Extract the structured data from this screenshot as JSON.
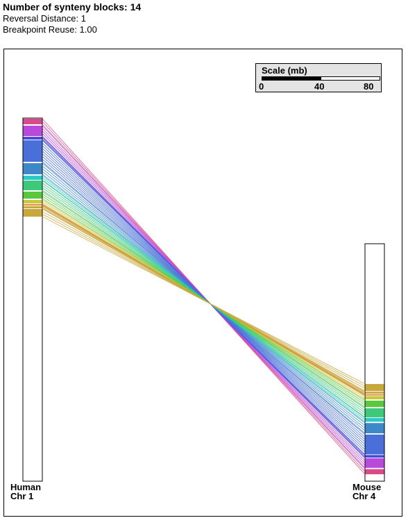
{
  "header": {
    "blocks_label": "Number of synteny blocks:",
    "blocks_value": "14",
    "reversal_label": "Reversal Distance:",
    "reversal_value": "1",
    "reuse_label": "Breakpoint Reuse:",
    "reuse_value": "1.00"
  },
  "scale": {
    "title": "Scale (mb)",
    "ticks": [
      "0",
      "40",
      "80"
    ],
    "max_mb": 80,
    "bar_fraction": 0.5
  },
  "chromosomes": {
    "left": {
      "species": "Human",
      "chr": "Chr 1"
    },
    "right": {
      "species": "Mouse",
      "chr": "Chr 4"
    }
  },
  "colors": {
    "magenta": "#d94a8c",
    "violet": "#b84ad9",
    "indigo": "#4a4ad9",
    "blue": "#4a6fd9",
    "steel": "#3d88c8",
    "cyan": "#2fc8c8",
    "green": "#3dc87a",
    "lime": "#5ac83d",
    "yellow": "#c8c83d",
    "orange": "#d98c3d",
    "gold": "#c8a83d"
  }
}
